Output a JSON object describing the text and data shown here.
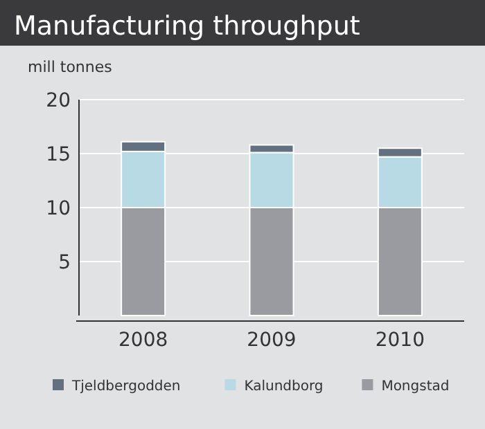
{
  "chart_data": {
    "type": "bar",
    "title": "Manufacturing throughput",
    "ylabel": "mill tonnes",
    "categories": [
      "2008",
      "2009",
      "2010"
    ],
    "series": [
      {
        "name": "Mongstad",
        "color": "#9a9aa1",
        "values": [
          10,
          10,
          10
        ]
      },
      {
        "name": "Kalundborg",
        "color": "#b8dae4",
        "values": [
          5.2,
          5.1,
          4.7
        ]
      },
      {
        "name": "Tjeldbergodden",
        "color": "#627080",
        "values": [
          0.9,
          0.7,
          0.8
        ]
      }
    ],
    "stacked": true,
    "ylim": [
      0,
      20
    ],
    "yticks": [
      5,
      10,
      15,
      20
    ],
    "grid": "y",
    "legend": "bottom"
  }
}
